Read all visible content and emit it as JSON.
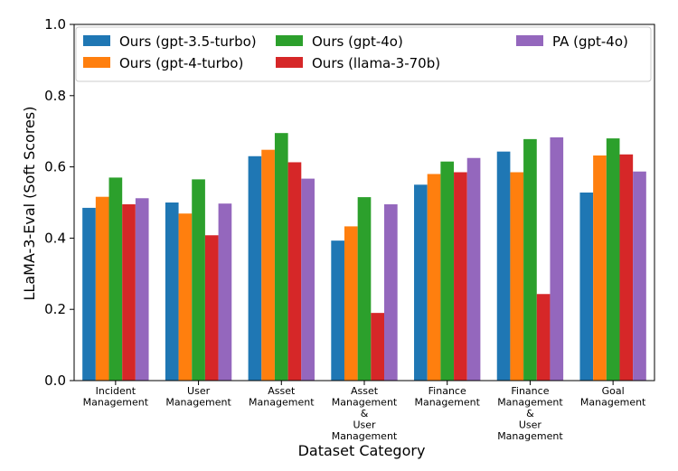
{
  "chart_data": {
    "type": "bar",
    "title": "",
    "xlabel": "Dataset Category",
    "ylabel": "LLaMA-3-Eval (Soft Scores)",
    "ylim": [
      0.0,
      1.0
    ],
    "yticks": [
      "0.0",
      "0.2",
      "0.4",
      "0.6",
      "0.8",
      "1.0"
    ],
    "grid": false,
    "legend_position": "top",
    "categories": [
      [
        "Incident",
        "Management"
      ],
      [
        "User",
        "Management"
      ],
      [
        "Asset",
        "Management"
      ],
      [
        "Asset",
        "Management",
        "&",
        "User",
        "Management"
      ],
      [
        "Finance",
        "Management"
      ],
      [
        "Finance",
        "Management",
        "&",
        "User",
        "Management"
      ],
      [
        "Goal",
        "Management"
      ]
    ],
    "series": [
      {
        "name": "Ours (gpt-3.5-turbo)",
        "color": "#1f77b4",
        "values": [
          0.485,
          0.5,
          0.63,
          0.393,
          0.55,
          0.643,
          0.528
        ]
      },
      {
        "name": "Ours (gpt-4-turbo)",
        "color": "#ff7f0e",
        "values": [
          0.516,
          0.469,
          0.648,
          0.433,
          0.58,
          0.585,
          0.632
        ]
      },
      {
        "name": "Ours (gpt-4o)",
        "color": "#2ca02c",
        "values": [
          0.57,
          0.565,
          0.695,
          0.515,
          0.615,
          0.678,
          0.68
        ]
      },
      {
        "name": "Ours (llama-3-70b)",
        "color": "#d62728",
        "values": [
          0.495,
          0.408,
          0.613,
          0.19,
          0.585,
          0.243,
          0.635
        ]
      },
      {
        "name": "PA (gpt-4o)",
        "color": "#9467bd",
        "values": [
          0.512,
          0.497,
          0.567,
          0.495,
          0.625,
          0.683,
          0.587
        ]
      }
    ]
  }
}
